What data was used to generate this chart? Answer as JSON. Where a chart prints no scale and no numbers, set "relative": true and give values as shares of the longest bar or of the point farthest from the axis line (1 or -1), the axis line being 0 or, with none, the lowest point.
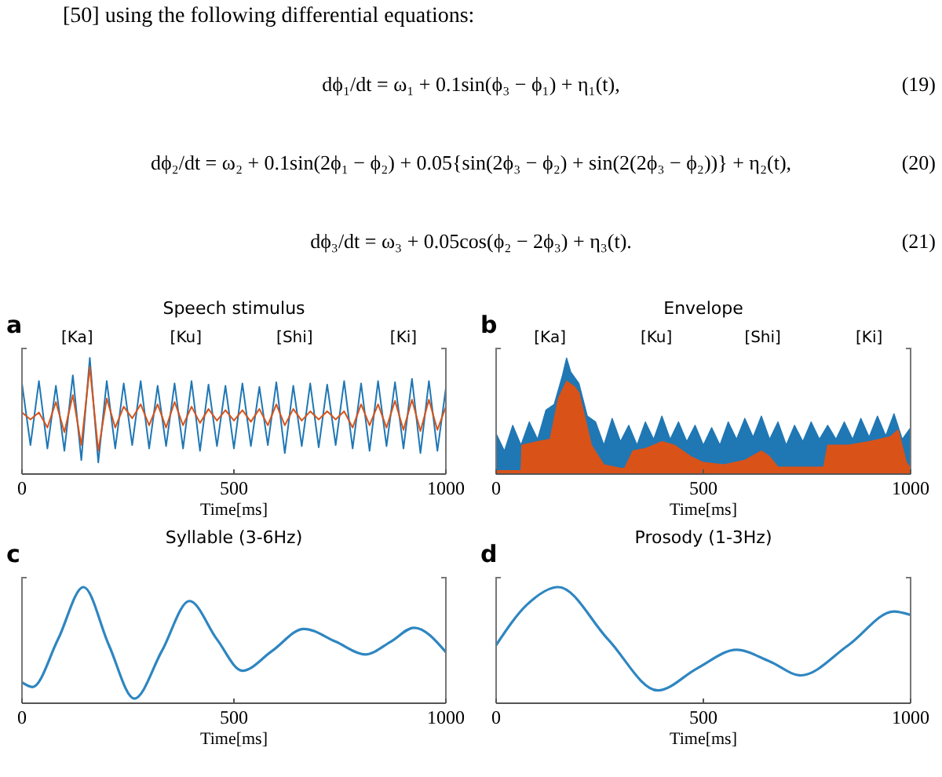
{
  "chart_data": [
    {
      "type": "other",
      "annotations": [
        "[50] using the following differential equations:",
        "dϕ₁/dt = ω₁ + 0.1sin(ϕ₃ − ϕ₁) + η₁(t),",
        "(19)",
        "dϕ₂/dt = ω₂ + 0.1sin(2ϕ₁ − ϕ₂) + 0.05{sin(2ϕ₃ − ϕ₂) + sin(2(2ϕ₃ − ϕ₂))} + η₂(t),",
        "(20)",
        "dϕ₃/dt = ω₃ + 0.05cos(ϕ₂ − 2ϕ₃) + η₃(t).",
        "(21)"
      ]
    },
    {
      "type": "line",
      "title": "Speech stimulus",
      "xlabel": "Time[ms]",
      "relative": true,
      "xlim": [
        0,
        1000
      ],
      "xticks": [
        0,
        500,
        1000
      ],
      "annotations": [
        "a",
        "[Ka]",
        "[Ku]",
        "[Shi]",
        "[Ki]"
      ],
      "x": [
        0,
        20,
        40,
        60,
        80,
        100,
        120,
        140,
        160,
        180,
        200,
        220,
        240,
        260,
        280,
        300,
        320,
        340,
        360,
        380,
        400,
        420,
        440,
        460,
        480,
        500,
        520,
        540,
        560,
        580,
        600,
        620,
        640,
        660,
        680,
        700,
        720,
        740,
        760,
        780,
        800,
        820,
        840,
        860,
        880,
        900,
        920,
        940,
        960,
        980,
        1000
      ],
      "series": [
        {
          "color": "#1f77b4",
          "values": [
            0.78,
            0.25,
            0.8,
            0.22,
            0.76,
            0.2,
            0.85,
            0.12,
            1.0,
            0.1,
            0.8,
            0.22,
            0.78,
            0.25,
            0.8,
            0.22,
            0.76,
            0.24,
            0.78,
            0.22,
            0.8,
            0.2,
            0.77,
            0.24,
            0.76,
            0.22,
            0.78,
            0.24,
            0.75,
            0.25,
            0.79,
            0.18,
            0.76,
            0.24,
            0.78,
            0.23,
            0.77,
            0.25,
            0.8,
            0.22,
            0.78,
            0.2,
            0.8,
            0.24,
            0.79,
            0.22,
            0.82,
            0.18,
            0.8,
            0.2,
            0.74
          ]
        },
        {
          "color": "#d95319",
          "values": [
            0.53,
            0.47,
            0.53,
            0.4,
            0.62,
            0.36,
            0.68,
            0.25,
            0.92,
            0.2,
            0.65,
            0.4,
            0.58,
            0.48,
            0.6,
            0.42,
            0.6,
            0.4,
            0.62,
            0.42,
            0.58,
            0.44,
            0.56,
            0.46,
            0.55,
            0.46,
            0.55,
            0.45,
            0.56,
            0.42,
            0.6,
            0.42,
            0.56,
            0.46,
            0.54,
            0.47,
            0.54,
            0.47,
            0.54,
            0.4,
            0.6,
            0.42,
            0.6,
            0.4,
            0.63,
            0.38,
            0.64,
            0.37,
            0.64,
            0.38,
            0.58
          ]
        }
      ]
    },
    {
      "type": "area",
      "title": "Envelope",
      "xlabel": "Time[ms]",
      "relative": true,
      "xlim": [
        0,
        1000
      ],
      "xticks": [
        0,
        500,
        1000
      ],
      "annotations": [
        "b",
        "[Ka]",
        "[Ku]",
        "[Shi]",
        "[Ki]"
      ],
      "series": [
        {
          "color": "#1f77b4",
          "x": [
            0,
            20,
            40,
            60,
            80,
            100,
            120,
            140,
            160,
            170,
            180,
            200,
            220,
            240,
            260,
            280,
            300,
            320,
            340,
            360,
            380,
            400,
            420,
            440,
            460,
            480,
            500,
            520,
            540,
            560,
            580,
            600,
            620,
            640,
            660,
            680,
            700,
            720,
            740,
            760,
            780,
            800,
            820,
            840,
            860,
            880,
            900,
            920,
            940,
            960,
            980,
            1000
          ],
          "values": [
            0.35,
            0.2,
            0.42,
            0.25,
            0.45,
            0.3,
            0.55,
            0.6,
            0.85,
            1.0,
            0.88,
            0.78,
            0.5,
            0.45,
            0.25,
            0.48,
            0.28,
            0.42,
            0.25,
            0.45,
            0.3,
            0.5,
            0.3,
            0.45,
            0.28,
            0.42,
            0.25,
            0.4,
            0.25,
            0.45,
            0.3,
            0.48,
            0.32,
            0.5,
            0.3,
            0.45,
            0.25,
            0.42,
            0.28,
            0.45,
            0.3,
            0.42,
            0.3,
            0.45,
            0.3,
            0.48,
            0.32,
            0.5,
            0.33,
            0.52,
            0.3,
            0.4
          ]
        },
        {
          "color": "#d95319",
          "x": [
            0,
            60,
            62,
            100,
            130,
            150,
            170,
            190,
            200,
            230,
            260,
            300,
            310,
            330,
            360,
            400,
            430,
            470,
            500,
            550,
            600,
            640,
            660,
            680,
            750,
            790,
            800,
            850,
            900,
            950,
            970,
            990,
            1000
          ],
          "values": [
            0.03,
            0.03,
            0.25,
            0.28,
            0.3,
            0.65,
            0.8,
            0.75,
            0.7,
            0.25,
            0.08,
            0.05,
            0.05,
            0.2,
            0.22,
            0.28,
            0.25,
            0.15,
            0.1,
            0.08,
            0.12,
            0.2,
            0.15,
            0.06,
            0.06,
            0.06,
            0.25,
            0.25,
            0.28,
            0.32,
            0.38,
            0.1,
            0.05
          ]
        }
      ]
    },
    {
      "type": "line",
      "title": "Syllable (3-6Hz)",
      "xlabel": "Time[ms]",
      "relative": true,
      "xlim": [
        0,
        1000
      ],
      "xticks": [
        0,
        500,
        1000
      ],
      "annotations": [
        "c"
      ],
      "series": [
        {
          "color": "#2e86c1",
          "x": [
            0,
            25,
            85,
            145,
            205,
            265,
            330,
            395,
            460,
            520,
            590,
            665,
            740,
            810,
            870,
            925,
            1000
          ],
          "values": [
            0.18,
            0.14,
            0.55,
            1.0,
            0.5,
            0.04,
            0.45,
            0.88,
            0.55,
            0.28,
            0.45,
            0.64,
            0.53,
            0.42,
            0.53,
            0.65,
            0.44
          ]
        }
      ]
    },
    {
      "type": "line",
      "title": "Prosody (1-3Hz)",
      "xlabel": "Time[ms]",
      "relative": true,
      "xlim": [
        0,
        1000
      ],
      "xticks": [
        0,
        500,
        1000
      ],
      "annotations": [
        "d"
      ],
      "series": [
        {
          "color": "#2e86c1",
          "x": [
            0,
            75,
            150,
            270,
            390,
            485,
            580,
            660,
            735,
            850,
            960,
            1000
          ],
          "values": [
            0.5,
            0.85,
            1.0,
            0.55,
            0.11,
            0.3,
            0.46,
            0.36,
            0.24,
            0.5,
            0.79,
            0.76
          ]
        }
      ]
    }
  ]
}
